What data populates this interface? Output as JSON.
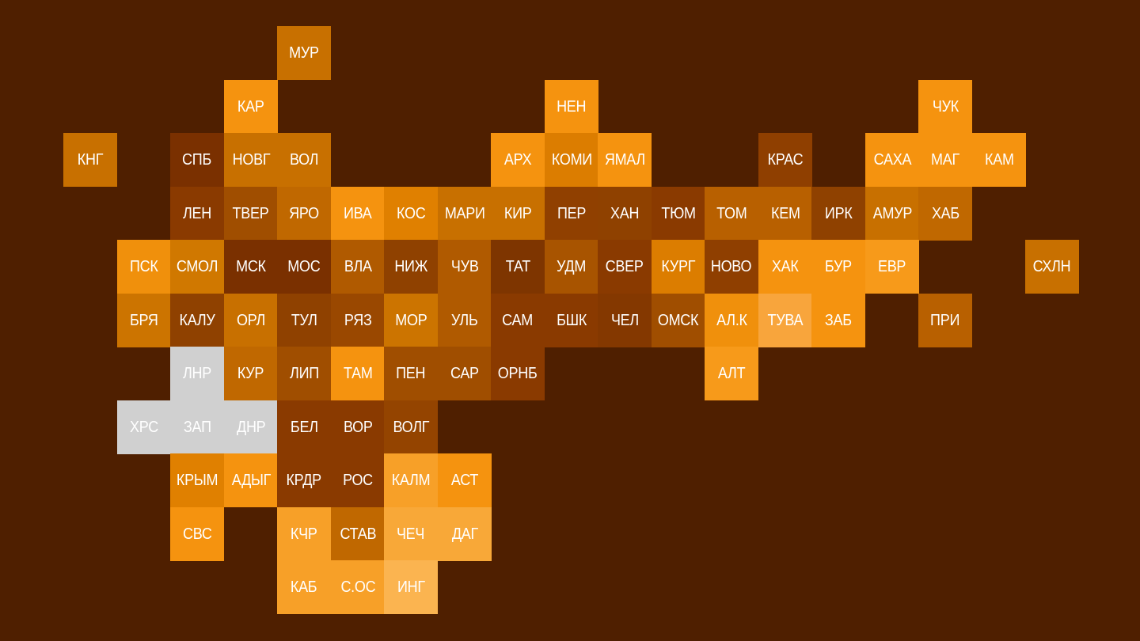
{
  "background": "#4f1f00",
  "regions": [
    {
      "label": "МУР",
      "color": "#c87000"
    },
    {
      "label": "КАР",
      "color": "#f5930f"
    },
    {
      "label": "НЕН",
      "color": "#f5930f"
    },
    {
      "label": "ЧУК",
      "color": "#f5930f"
    },
    {
      "label": "КНГ",
      "color": "#c87000"
    },
    {
      "label": "СПБ",
      "color": "#7a3000"
    },
    {
      "label": "НОВГ",
      "color": "#c87000"
    },
    {
      "label": "ВОЛ",
      "color": "#c87000"
    },
    {
      "label": "АРХ",
      "color": "#f5930f"
    },
    {
      "label": "КОМИ",
      "color": "#dc7d00"
    },
    {
      "label": "ЯМАЛ",
      "color": "#f5930f"
    },
    {
      "label": "КРАС",
      "color": "#8f3f00"
    },
    {
      "label": "САХА",
      "color": "#f5930f"
    },
    {
      "label": "МАГ",
      "color": "#f5930f"
    },
    {
      "label": "КАМ",
      "color": "#f5930f"
    },
    {
      "label": "ЛЕН",
      "color": "#8a3a00"
    },
    {
      "label": "ТВЕР",
      "color": "#a04e00"
    },
    {
      "label": "ЯРО",
      "color": "#c06800"
    },
    {
      "label": "ИВА",
      "color": "#f5930f"
    },
    {
      "label": "КОС",
      "color": "#e08000"
    },
    {
      "label": "МАРИ",
      "color": "#c87000"
    },
    {
      "label": "КИР",
      "color": "#c87000"
    },
    {
      "label": "ПЕР",
      "color": "#904000"
    },
    {
      "label": "ХАН",
      "color": "#8f4100"
    },
    {
      "label": "ТЮМ",
      "color": "#8a3a00"
    },
    {
      "label": "ТОМ",
      "color": "#b86000"
    },
    {
      "label": "КЕМ",
      "color": "#b86000"
    },
    {
      "label": "ИРК",
      "color": "#8f4100"
    },
    {
      "label": "АМУР",
      "color": "#c87000"
    },
    {
      "label": "ХАБ",
      "color": "#c06800"
    },
    {
      "label": "ПСК",
      "color": "#f0900c"
    },
    {
      "label": "СМОЛ",
      "color": "#d07800"
    },
    {
      "label": "МСК",
      "color": "#7a3000"
    },
    {
      "label": "МОС",
      "color": "#7a3000"
    },
    {
      "label": "ВЛА",
      "color": "#b05a00"
    },
    {
      "label": "НИЖ",
      "color": "#8f4100"
    },
    {
      "label": "ЧУВ",
      "color": "#b05a00"
    },
    {
      "label": "ТАТ",
      "color": "#7e3500"
    },
    {
      "label": "УДМ",
      "color": "#a85400"
    },
    {
      "label": "СВЕР",
      "color": "#8a3a00"
    },
    {
      "label": "КУРГ",
      "color": "#dc7d00"
    },
    {
      "label": "НОВО",
      "color": "#8f3f00"
    },
    {
      "label": "ХАК",
      "color": "#f5930f"
    },
    {
      "label": "БУР",
      "color": "#f5930f"
    },
    {
      "label": "ЕВР",
      "color": "#f79a1a"
    },
    {
      "label": "СХЛН",
      "color": "#c87000"
    },
    {
      "label": "БРЯ",
      "color": "#cc7400"
    },
    {
      "label": "КАЛУ",
      "color": "#8f4100"
    },
    {
      "label": "ОРЛ",
      "color": "#c87000"
    },
    {
      "label": "ТУЛ",
      "color": "#8f4100"
    },
    {
      "label": "РЯЗ",
      "color": "#9a4800"
    },
    {
      "label": "МОР",
      "color": "#cc7400"
    },
    {
      "label": "УЛЬ",
      "color": "#b05a00"
    },
    {
      "label": "САМ",
      "color": "#8a3a00"
    },
    {
      "label": "БШК",
      "color": "#8a3a00"
    },
    {
      "label": "ЧЕЛ",
      "color": "#843800"
    },
    {
      "label": "ОМСК",
      "color": "#a04e00"
    },
    {
      "label": "АЛ.К",
      "color": "#f0900c"
    },
    {
      "label": "ТУВА",
      "color": "#f8a53c"
    },
    {
      "label": "ЗАБ",
      "color": "#f5930f"
    },
    {
      "label": "ПРИ",
      "color": "#b86000"
    },
    {
      "label": "ЛНР",
      "color": "#d0d0d0"
    },
    {
      "label": "КУР",
      "color": "#c06800"
    },
    {
      "label": "ЛИП",
      "color": "#a04e00"
    },
    {
      "label": "ТАМ",
      "color": "#f5930f"
    },
    {
      "label": "ПЕН",
      "color": "#a04e00"
    },
    {
      "label": "САР",
      "color": "#a04e00"
    },
    {
      "label": "ОРНБ",
      "color": "#8a3a00"
    },
    {
      "label": "АЛТ",
      "color": "#f79a1a"
    },
    {
      "label": "ХРС",
      "color": "#d0d0d0"
    },
    {
      "label": "ЗАП",
      "color": "#d0d0d0"
    },
    {
      "label": "ДНР",
      "color": "#d0d0d0"
    },
    {
      "label": "БЕЛ",
      "color": "#8a3a00"
    },
    {
      "label": "ВОР",
      "color": "#8a3a00"
    },
    {
      "label": "ВОЛГ",
      "color": "#944400"
    },
    {
      "label": "КРЫМ",
      "color": "#e08000"
    },
    {
      "label": "АДЫГ",
      "color": "#f5930f"
    },
    {
      "label": "КРДР",
      "color": "#8a3a00"
    },
    {
      "label": "РОС",
      "color": "#8a3a00"
    },
    {
      "label": "КАЛМ",
      "color": "#f7a028"
    },
    {
      "label": "АСТ",
      "color": "#f5930f"
    },
    {
      "label": "СВС",
      "color": "#f5930f"
    },
    {
      "label": "КЧР",
      "color": "#f7a028"
    },
    {
      "label": "СТАВ",
      "color": "#c06800"
    },
    {
      "label": "ЧЕЧ",
      "color": "#f8a838"
    },
    {
      "label": "ДАГ",
      "color": "#f8a838"
    },
    {
      "label": "КАБ",
      "color": "#f7a028"
    },
    {
      "label": "С.ОС",
      "color": "#f7a028"
    },
    {
      "label": "ИНГ",
      "color": "#fbb450"
    }
  ]
}
